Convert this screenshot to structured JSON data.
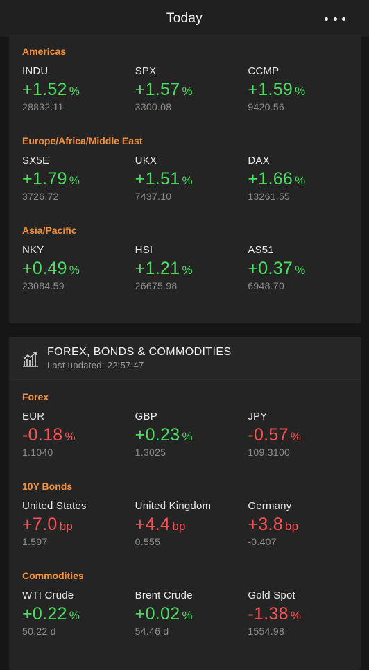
{
  "header": {
    "title": "Today"
  },
  "indices": {
    "sections": [
      {
        "title": "Americas",
        "quotes": [
          {
            "name": "INDU",
            "change": "+1.52",
            "unit": "%",
            "price": "28832.11",
            "direction": "up"
          },
          {
            "name": "SPX",
            "change": "+1.57",
            "unit": "%",
            "price": "3300.08",
            "direction": "up"
          },
          {
            "name": "CCMP",
            "change": "+1.59",
            "unit": "%",
            "price": "9420.56",
            "direction": "up"
          }
        ]
      },
      {
        "title": "Europe/Africa/Middle East",
        "quotes": [
          {
            "name": "SX5E",
            "change": "+1.79",
            "unit": "%",
            "price": "3726.72",
            "direction": "up"
          },
          {
            "name": "UKX",
            "change": "+1.51",
            "unit": "%",
            "price": "7437.10",
            "direction": "up"
          },
          {
            "name": "DAX",
            "change": "+1.66",
            "unit": "%",
            "price": "13261.55",
            "direction": "up"
          }
        ]
      },
      {
        "title": "Asia/Pacific",
        "quotes": [
          {
            "name": "NKY",
            "change": "+0.49",
            "unit": "%",
            "price": "23084.59",
            "direction": "up"
          },
          {
            "name": "HSI",
            "change": "+1.21",
            "unit": "%",
            "price": "26675.98",
            "direction": "up"
          },
          {
            "name": "AS51",
            "change": "+0.37",
            "unit": "%",
            "price": "6948.70",
            "direction": "up"
          }
        ]
      }
    ]
  },
  "fx_card": {
    "title": "FOREX, BONDS & COMMODITIES",
    "last_updated": "Last updated: 22:57:47",
    "icon": "chart-trend-icon",
    "sections": [
      {
        "title": "Forex",
        "quotes": [
          {
            "name": "EUR",
            "change": "-0.18",
            "unit": "%",
            "price": "1.1040",
            "direction": "down"
          },
          {
            "name": "GBP",
            "change": "+0.23",
            "unit": "%",
            "price": "1.3025",
            "direction": "up"
          },
          {
            "name": "JPY",
            "change": "-0.57",
            "unit": "%",
            "price": "109.3100",
            "direction": "down"
          }
        ]
      },
      {
        "title": "10Y Bonds",
        "quotes": [
          {
            "name": "United States",
            "change": "+7.0",
            "unit": "bp",
            "price": "1.597",
            "direction": "down"
          },
          {
            "name": "United Kingdom",
            "change": "+4.4",
            "unit": "bp",
            "price": "0.555",
            "direction": "down"
          },
          {
            "name": "Germany",
            "change": "+3.8",
            "unit": "bp",
            "price": "-0.407",
            "direction": "down"
          }
        ]
      },
      {
        "title": "Commodities",
        "quotes": [
          {
            "name": "WTI Crude",
            "change": "+0.22",
            "unit": "%",
            "price": "50.22 d",
            "direction": "up"
          },
          {
            "name": "Brent Crude",
            "change": "+0.02",
            "unit": "%",
            "price": "54.46 d",
            "direction": "up"
          },
          {
            "name": "Gold Spot",
            "change": "-1.38",
            "unit": "%",
            "price": "1554.98",
            "direction": "down"
          }
        ]
      }
    ]
  },
  "colors": {
    "up": "#4ddc64",
    "down": "#ff5255",
    "section_title": "#f4923c",
    "background": "#161616",
    "card": "#242424"
  }
}
